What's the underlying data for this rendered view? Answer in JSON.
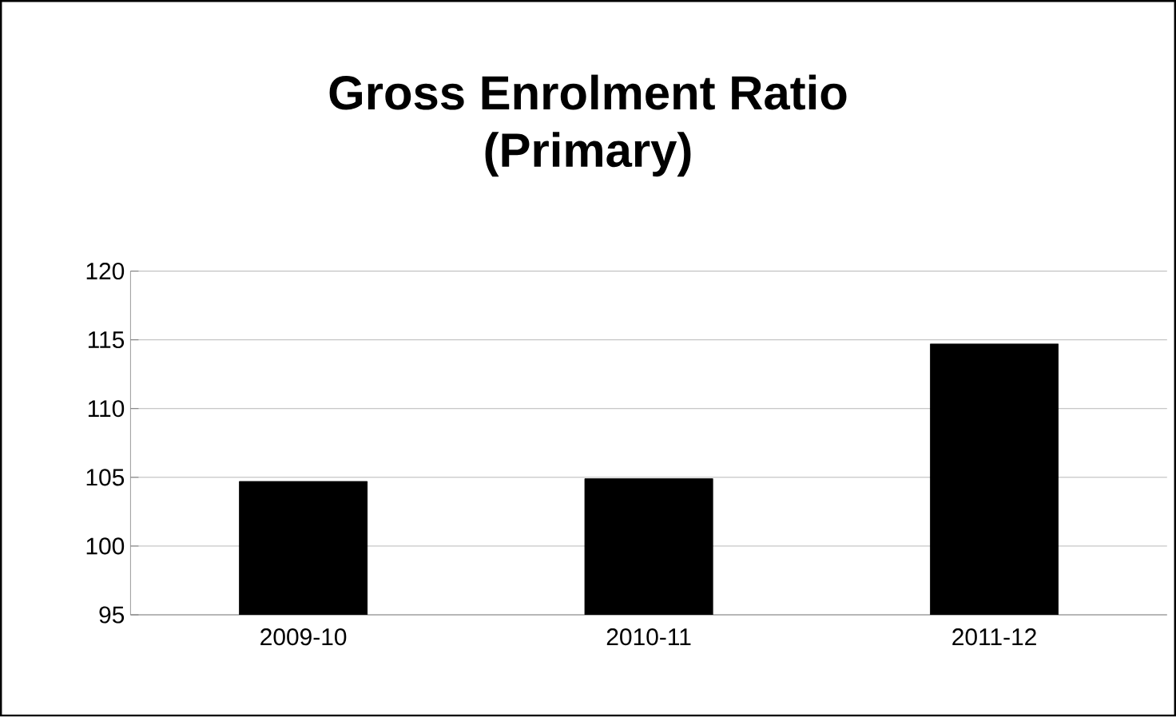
{
  "chart_data": {
    "type": "bar",
    "title": "Gross Enrolment Ratio\n(Primary)",
    "categories": [
      "2009-10",
      "2010-11",
      "2011-12"
    ],
    "values": [
      104.7,
      104.9,
      114.7
    ],
    "color": "#000000",
    "ylim": [
      95,
      120
    ],
    "yticks": [
      95,
      100,
      105,
      110,
      115,
      120
    ],
    "grid": "y"
  }
}
